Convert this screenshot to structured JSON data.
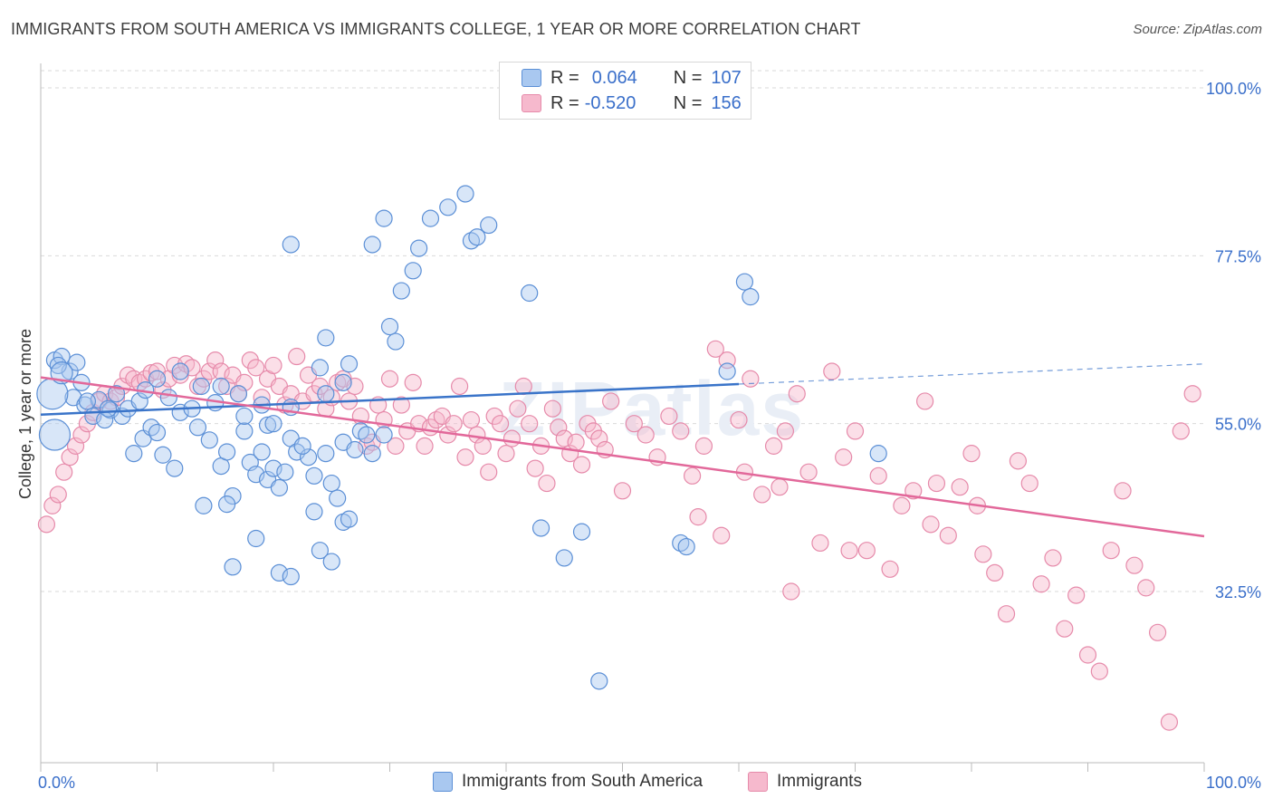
{
  "title": "IMMIGRANTS FROM SOUTH AMERICA VS IMMIGRANTS COLLEGE, 1 YEAR OR MORE CORRELATION CHART",
  "source": "Source: ZipAtlas.com",
  "watermark": "ZIPatlas",
  "legend": {
    "rows": [
      {
        "r_label": "R =",
        "r_value": "0.064",
        "n_label": "N =",
        "n_value": "107"
      },
      {
        "r_label": "R =",
        "r_value": "-0.520",
        "n_label": "N =",
        "n_value": "156"
      }
    ]
  },
  "colors": {
    "blue_fill": "#a9c8f0",
    "blue_stroke": "#5b8fd6",
    "blue_line": "#3a74c9",
    "pink_fill": "#f6b9cd",
    "pink_stroke": "#e68aaa",
    "pink_line": "#e2689a",
    "grid": "#d9d9d9",
    "tick_label": "#3a6fca"
  },
  "chart_data": {
    "type": "scatter",
    "title": "IMMIGRANTS FROM SOUTH AMERICA VS IMMIGRANTS COLLEGE, 1 YEAR OR MORE CORRELATION CHART",
    "xlabel": "",
    "ylabel": "College, 1 year or more",
    "xlim": [
      0,
      100
    ],
    "ylim": [
      10,
      105
    ],
    "x_tick_labels": [
      "0.0%",
      "100.0%"
    ],
    "y_ticks": [
      32.5,
      55.0,
      77.5,
      100.0
    ],
    "y_tick_labels": [
      "32.5%",
      "55.0%",
      "77.5%",
      "100.0%"
    ],
    "grid": "horizontal dashed",
    "legend_placement": "top-center",
    "series": [
      {
        "name": "Immigrants from South America",
        "trend": {
          "x": [
            0,
            60
          ],
          "y": [
            56.2,
            60.3
          ],
          "dashed_extension": {
            "x": [
              60,
              100
            ],
            "y": [
              60.3,
              63.0
            ]
          }
        },
        "points": [
          [
            1.2,
            63.5
          ],
          [
            1.8,
            64.0
          ],
          [
            2.5,
            62.0
          ],
          [
            3.1,
            63.2
          ],
          [
            3.5,
            60.5
          ],
          [
            1.5,
            62.8
          ],
          [
            2.8,
            58.5
          ],
          [
            3.8,
            57.5
          ],
          [
            4.5,
            56.0
          ],
          [
            5.0,
            58.2
          ],
          [
            6.0,
            56.8
          ],
          [
            5.5,
            55.5
          ],
          [
            7.0,
            56.0
          ],
          [
            8.0,
            51.0
          ],
          [
            8.8,
            53.0
          ],
          [
            9.5,
            54.5
          ],
          [
            10.0,
            53.8
          ],
          [
            10.5,
            50.8
          ],
          [
            11.5,
            49.0
          ],
          [
            12.0,
            56.5
          ],
          [
            13.0,
            57.0
          ],
          [
            13.5,
            54.5
          ],
          [
            14.5,
            52.8
          ],
          [
            15.0,
            57.8
          ],
          [
            15.5,
            49.3
          ],
          [
            16.0,
            51.2
          ],
          [
            16.5,
            45.3
          ],
          [
            17.5,
            54.0
          ],
          [
            18.0,
            49.8
          ],
          [
            18.5,
            48.2
          ],
          [
            19.0,
            51.2
          ],
          [
            19.5,
            47.5
          ],
          [
            20.0,
            49.0
          ],
          [
            20.5,
            46.4
          ],
          [
            21.0,
            48.5
          ],
          [
            21.5,
            53.0
          ],
          [
            22.0,
            51.2
          ],
          [
            23.0,
            50.5
          ],
          [
            23.5,
            43.2
          ],
          [
            24.5,
            51.0
          ],
          [
            25.0,
            47.0
          ],
          [
            25.5,
            45.0
          ],
          [
            26.0,
            41.8
          ],
          [
            26.5,
            42.2
          ],
          [
            27.5,
            54.0
          ],
          [
            28.5,
            51.0
          ],
          [
            16.0,
            44.2
          ],
          [
            14.0,
            44.0
          ],
          [
            19.5,
            54.8
          ],
          [
            17.0,
            59.0
          ],
          [
            15.5,
            60.0
          ],
          [
            10.0,
            61.0
          ],
          [
            12.0,
            62.0
          ],
          [
            24.0,
            62.5
          ],
          [
            26.0,
            60.5
          ],
          [
            28.0,
            53.5
          ],
          [
            24.5,
            59.0
          ],
          [
            21.5,
            57.2
          ],
          [
            20.0,
            55.0
          ],
          [
            18.5,
            39.6
          ],
          [
            16.5,
            35.8
          ],
          [
            20.5,
            35.0
          ],
          [
            21.5,
            34.5
          ],
          [
            24.0,
            38.0
          ],
          [
            25.0,
            36.5
          ],
          [
            21.5,
            79.0
          ],
          [
            24.5,
            66.5
          ],
          [
            26.5,
            63.0
          ],
          [
            28.5,
            79.0
          ],
          [
            29.5,
            82.5
          ],
          [
            30.0,
            68.0
          ],
          [
            30.5,
            66.0
          ],
          [
            31.0,
            72.8
          ],
          [
            32.0,
            75.5
          ],
          [
            32.5,
            78.5
          ],
          [
            33.5,
            82.5
          ],
          [
            35.0,
            84.0
          ],
          [
            36.5,
            85.8
          ],
          [
            37.0,
            79.5
          ],
          [
            37.5,
            80.0
          ],
          [
            38.5,
            81.6
          ],
          [
            42.0,
            72.5
          ],
          [
            43.0,
            41.0
          ],
          [
            45.0,
            37.0
          ],
          [
            46.5,
            40.5
          ],
          [
            48.0,
            20.5
          ],
          [
            55.0,
            39.0
          ],
          [
            59.0,
            62.0
          ],
          [
            60.5,
            74.0
          ],
          [
            61.0,
            72.0
          ],
          [
            55.5,
            38.5
          ],
          [
            72.0,
            51.0
          ],
          [
            6.5,
            59.0
          ],
          [
            7.5,
            57.0
          ],
          [
            8.5,
            58.0
          ],
          [
            9.0,
            59.5
          ],
          [
            11.0,
            58.5
          ],
          [
            13.8,
            60.0
          ],
          [
            22.5,
            52.0
          ],
          [
            23.5,
            48.0
          ],
          [
            17.5,
            56.0
          ],
          [
            19.0,
            57.5
          ],
          [
            26.0,
            52.5
          ],
          [
            27.0,
            51.5
          ],
          [
            29.5,
            53.5
          ],
          [
            4.0,
            58.0
          ],
          [
            5.8,
            57.0
          ]
        ],
        "large_points": [
          [
            1.0,
            59.0
          ],
          [
            1.2,
            53.5
          ],
          [
            1.8,
            61.8
          ]
        ]
      },
      {
        "name": "Immigrants",
        "trend": {
          "x": [
            0,
            100
          ],
          "y": [
            61.2,
            39.9
          ]
        },
        "points": [
          [
            0.5,
            41.5
          ],
          [
            1.0,
            44.0
          ],
          [
            1.5,
            45.5
          ],
          [
            2.0,
            48.5
          ],
          [
            2.5,
            50.5
          ],
          [
            3.0,
            52.0
          ],
          [
            3.5,
            53.5
          ],
          [
            4.0,
            55.0
          ],
          [
            4.5,
            56.5
          ],
          [
            5.0,
            58.0
          ],
          [
            5.5,
            59.0
          ],
          [
            6.0,
            58.0
          ],
          [
            6.5,
            58.5
          ],
          [
            7.0,
            60.0
          ],
          [
            7.5,
            61.5
          ],
          [
            8.0,
            61.0
          ],
          [
            8.5,
            60.5
          ],
          [
            9.0,
            61.0
          ],
          [
            9.5,
            61.8
          ],
          [
            10.0,
            62.0
          ],
          [
            10.5,
            59.5
          ],
          [
            11.0,
            61.0
          ],
          [
            11.5,
            62.8
          ],
          [
            12.0,
            61.5
          ],
          [
            12.5,
            63.0
          ],
          [
            13.0,
            62.5
          ],
          [
            13.5,
            60.0
          ],
          [
            14.0,
            61.0
          ],
          [
            14.5,
            62.0
          ],
          [
            15.0,
            63.5
          ],
          [
            15.5,
            62.0
          ],
          [
            16.0,
            60.0
          ],
          [
            16.5,
            61.5
          ],
          [
            17.0,
            59.0
          ],
          [
            17.5,
            60.5
          ],
          [
            18.0,
            63.5
          ],
          [
            18.5,
            62.5
          ],
          [
            19.0,
            58.5
          ],
          [
            19.5,
            61.0
          ],
          [
            20.0,
            62.8
          ],
          [
            20.5,
            60.0
          ],
          [
            21.0,
            57.5
          ],
          [
            21.5,
            59.0
          ],
          [
            22.0,
            64.0
          ],
          [
            22.5,
            58.0
          ],
          [
            23.0,
            61.5
          ],
          [
            23.5,
            59.0
          ],
          [
            24.0,
            60.0
          ],
          [
            24.5,
            57.0
          ],
          [
            25.0,
            58.5
          ],
          [
            25.5,
            60.5
          ],
          [
            26.0,
            61.0
          ],
          [
            26.5,
            58.0
          ],
          [
            27.0,
            60.0
          ],
          [
            27.5,
            56.0
          ],
          [
            28.0,
            52.0
          ],
          [
            28.5,
            52.5
          ],
          [
            29.0,
            57.5
          ],
          [
            29.5,
            55.5
          ],
          [
            30.0,
            61.0
          ],
          [
            30.5,
            52.0
          ],
          [
            31.0,
            57.5
          ],
          [
            31.5,
            54.0
          ],
          [
            32.0,
            60.5
          ],
          [
            32.5,
            55.0
          ],
          [
            33.0,
            52.0
          ],
          [
            33.5,
            54.5
          ],
          [
            34.0,
            55.5
          ],
          [
            34.5,
            56.0
          ],
          [
            35.0,
            53.5
          ],
          [
            35.5,
            55.0
          ],
          [
            36.0,
            60.0
          ],
          [
            36.5,
            50.5
          ],
          [
            37.0,
            55.5
          ],
          [
            37.5,
            53.5
          ],
          [
            38.0,
            52.0
          ],
          [
            38.5,
            48.5
          ],
          [
            39.0,
            56.0
          ],
          [
            39.5,
            55.0
          ],
          [
            40.0,
            51.0
          ],
          [
            40.5,
            53.0
          ],
          [
            41.0,
            57.0
          ],
          [
            41.5,
            60.0
          ],
          [
            42.0,
            55.0
          ],
          [
            42.5,
            49.0
          ],
          [
            43.0,
            52.0
          ],
          [
            43.5,
            47.0
          ],
          [
            44.0,
            57.0
          ],
          [
            44.5,
            54.5
          ],
          [
            45.0,
            53.0
          ],
          [
            45.5,
            51.0
          ],
          [
            46.0,
            52.5
          ],
          [
            46.5,
            49.5
          ],
          [
            47.0,
            55.0
          ],
          [
            47.5,
            54.0
          ],
          [
            48.0,
            53.0
          ],
          [
            48.5,
            51.5
          ],
          [
            49.0,
            58.0
          ],
          [
            50.0,
            46.0
          ],
          [
            51.0,
            55.0
          ],
          [
            52.0,
            53.5
          ],
          [
            53.0,
            50.5
          ],
          [
            54.0,
            56.0
          ],
          [
            55.0,
            54.0
          ],
          [
            56.0,
            48.0
          ],
          [
            57.0,
            52.0
          ],
          [
            58.0,
            65.0
          ],
          [
            59.0,
            63.5
          ],
          [
            60.0,
            55.5
          ],
          [
            61.0,
            61.0
          ],
          [
            62.0,
            45.5
          ],
          [
            63.0,
            52.0
          ],
          [
            64.0,
            54.0
          ],
          [
            65.0,
            59.0
          ],
          [
            66.0,
            48.5
          ],
          [
            67.0,
            39.0
          ],
          [
            68.0,
            62.0
          ],
          [
            69.0,
            50.5
          ],
          [
            70.0,
            54.0
          ],
          [
            71.0,
            38.0
          ],
          [
            72.0,
            48.0
          ],
          [
            73.0,
            35.5
          ],
          [
            74.0,
            44.0
          ],
          [
            75.0,
            46.0
          ],
          [
            76.0,
            58.0
          ],
          [
            77.0,
            47.0
          ],
          [
            78.0,
            40.0
          ],
          [
            79.0,
            46.5
          ],
          [
            80.0,
            51.0
          ],
          [
            81.0,
            37.5
          ],
          [
            82.0,
            35.0
          ],
          [
            83.0,
            29.5
          ],
          [
            84.0,
            50.0
          ],
          [
            85.0,
            47.0
          ],
          [
            86.0,
            33.5
          ],
          [
            87.0,
            37.0
          ],
          [
            88.0,
            27.5
          ],
          [
            89.0,
            32.0
          ],
          [
            90.0,
            24.0
          ],
          [
            91.0,
            21.8
          ],
          [
            92.0,
            38.0
          ],
          [
            93.0,
            46.0
          ],
          [
            94.0,
            36.0
          ],
          [
            95.0,
            33.0
          ],
          [
            96.0,
            27.0
          ],
          [
            97.0,
            15.0
          ],
          [
            98.0,
            54.0
          ],
          [
            99.0,
            59.0
          ],
          [
            80.5,
            44.0
          ],
          [
            76.5,
            41.5
          ],
          [
            69.5,
            38.0
          ],
          [
            64.5,
            32.5
          ],
          [
            63.5,
            46.5
          ],
          [
            60.5,
            48.5
          ],
          [
            58.5,
            40.0
          ],
          [
            56.5,
            42.5
          ]
        ]
      }
    ]
  },
  "bottom_legend": [
    {
      "label": "Immigrants from South America"
    },
    {
      "label": "Immigrants"
    }
  ]
}
